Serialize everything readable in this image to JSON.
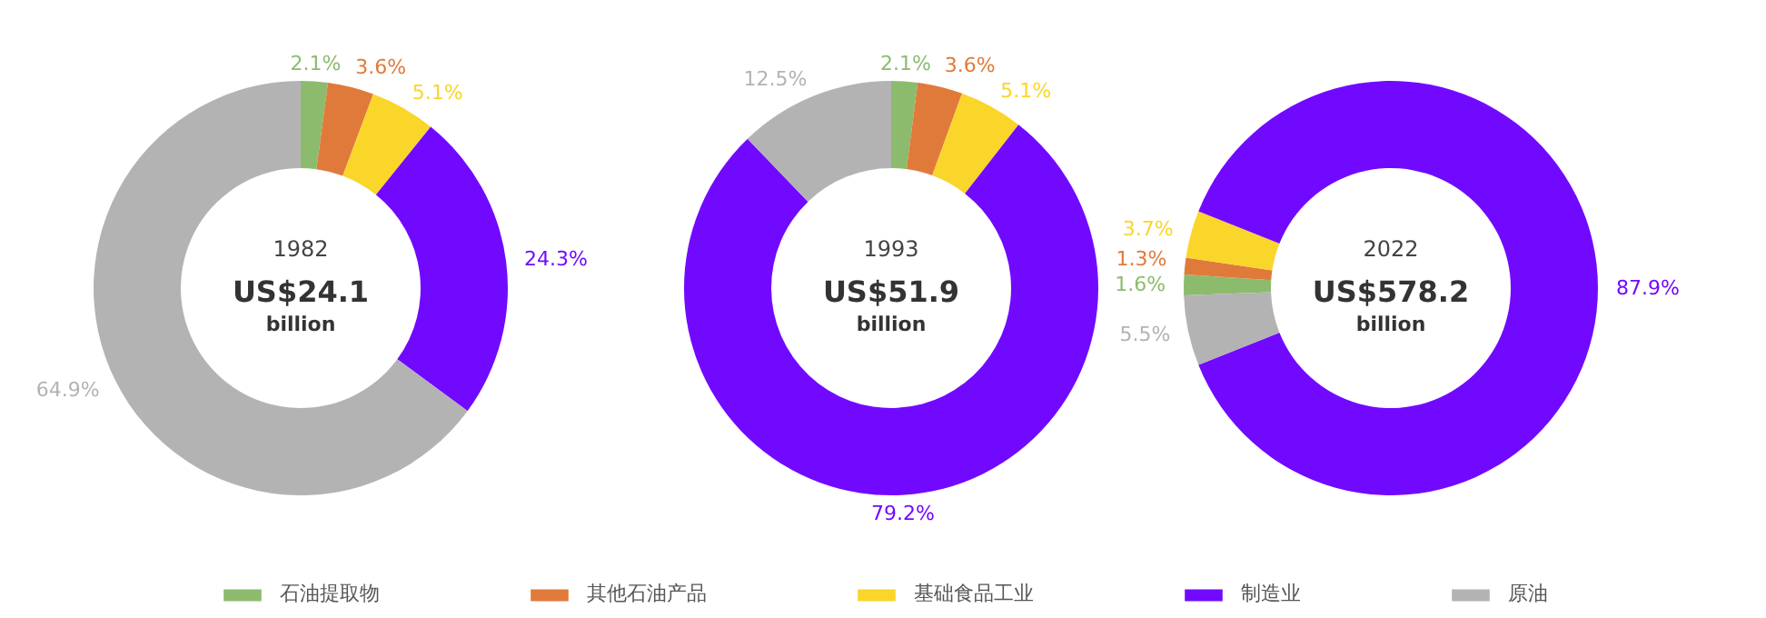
{
  "chart_data": [
    {
      "type": "donut",
      "title": "1982",
      "subtitle": "US$24.1",
      "annotations": [
        "billion"
      ],
      "categories": [
        "石油提取物",
        "其他石油产品",
        "基础食品工业",
        "制造业",
        "原油"
      ],
      "values": [
        2.1,
        3.6,
        5.1,
        24.3,
        64.9
      ],
      "colors": [
        "#8cbb6e",
        "#e07a3a",
        "#fad52a",
        "#7209ff",
        "#b3b3b3"
      ],
      "value_labels": [
        "2.1%",
        "3.6%",
        "5.1%",
        "24.3%",
        "64.9%"
      ],
      "legend": "bottom"
    },
    {
      "type": "donut",
      "title": "1993",
      "subtitle": "US$51.9",
      "annotations": [
        "billion"
      ],
      "categories": [
        null,
        null,
        null,
        null,
        null
      ],
      "values": [
        2.1,
        3.6,
        5.1,
        79.2,
        12.5
      ],
      "colors": [
        "#8cbb6e",
        "#e07a3a",
        "#fad52a",
        "#7209ff",
        "#b3b3b3"
      ],
      "value_labels": [
        "2.1%",
        "3.6%",
        "5.1%",
        "79.2%",
        "12.5%"
      ]
    },
    {
      "type": "donut",
      "title": "2022",
      "subtitle": "US$578.2",
      "annotations": [
        "billion"
      ],
      "categories": [
        null,
        null,
        null,
        null,
        null
      ],
      "values": [
        1.6,
        1.3,
        3.7,
        87.9,
        5.5
      ],
      "colors": [
        "#8cbb6e",
        "#e07a3a",
        "#fad52a",
        "#7209ff",
        "#b3b3b3"
      ],
      "value_labels": [
        "1.6%",
        "1.3%",
        "3.7%",
        "87.9%",
        "5.5%"
      ]
    }
  ]
}
